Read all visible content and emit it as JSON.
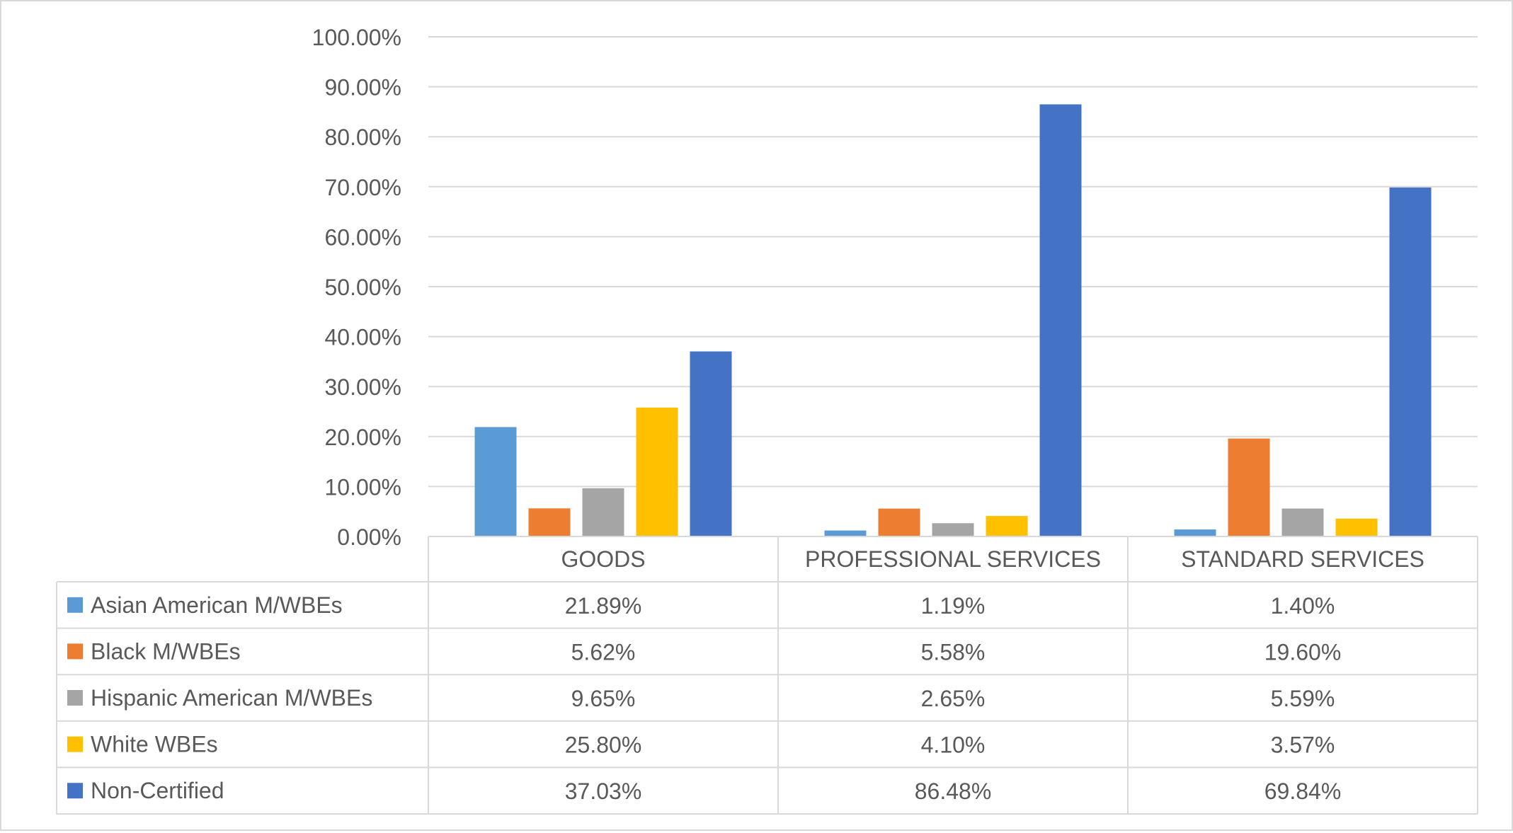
{
  "chart_data": {
    "type": "bar",
    "categories": [
      "GOODS",
      "PROFESSIONAL SERVICES",
      "STANDARD SERVICES"
    ],
    "series": [
      {
        "name": "Asian American M/WBEs",
        "color": "#5b9bd5",
        "values": [
          21.89,
          1.19,
          1.4
        ],
        "labels": [
          "21.89%",
          "1.19%",
          "1.40%"
        ]
      },
      {
        "name": "Black M/WBEs",
        "color": "#ed7d31",
        "values": [
          5.62,
          5.58,
          19.6
        ],
        "labels": [
          "5.62%",
          "5.58%",
          "19.60%"
        ]
      },
      {
        "name": "Hispanic American M/WBEs",
        "color": "#a5a5a5",
        "values": [
          9.65,
          2.65,
          5.59
        ],
        "labels": [
          "9.65%",
          "2.65%",
          "5.59%"
        ]
      },
      {
        "name": "White WBEs",
        "color": "#ffc000",
        "values": [
          25.8,
          4.1,
          3.57
        ],
        "labels": [
          "25.80%",
          "4.10%",
          "3.57%"
        ]
      },
      {
        "name": "Non-Certified",
        "color": "#4472c4",
        "values": [
          37.03,
          86.48,
          69.84
        ],
        "labels": [
          "37.03%",
          "86.48%",
          "69.84%"
        ]
      }
    ],
    "ylim": [
      0,
      100
    ],
    "yticks": [
      0,
      10,
      20,
      30,
      40,
      50,
      60,
      70,
      80,
      90,
      100
    ],
    "ytick_labels": [
      "0.00%",
      "10.00%",
      "20.00%",
      "30.00%",
      "40.00%",
      "50.00%",
      "60.00%",
      "70.00%",
      "80.00%",
      "90.00%",
      "100.00%"
    ],
    "grid": true,
    "legend": "data-table",
    "title": "",
    "xlabel": "",
    "ylabel": ""
  }
}
